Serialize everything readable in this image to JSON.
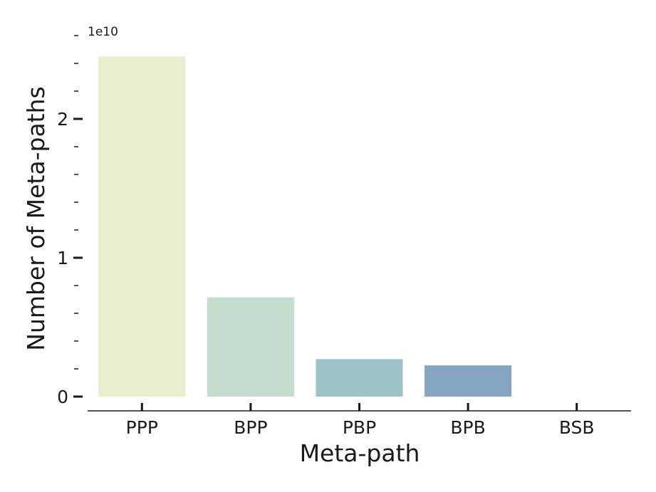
{
  "chart_data": {
    "type": "bar",
    "categories": [
      "PPP",
      "BPP",
      "PBP",
      "BPB",
      "BSB"
    ],
    "values": [
      24500000000,
      7150000000,
      2700000000,
      2250000000,
      0
    ],
    "colors": [
      "#e8efcf",
      "#c5ddcf",
      "#9dc2c8",
      "#86a5c1",
      "#b0c7dc"
    ],
    "xlabel": "Meta-path",
    "ylabel": "Number of Meta-paths",
    "y_offset_text": "1e10",
    "y_scale": 10000000000,
    "ylim": [
      0,
      25000000000
    ],
    "y_major_ticks": [
      0,
      1,
      2
    ],
    "y_minor_step": 0.2,
    "grid": false
  }
}
